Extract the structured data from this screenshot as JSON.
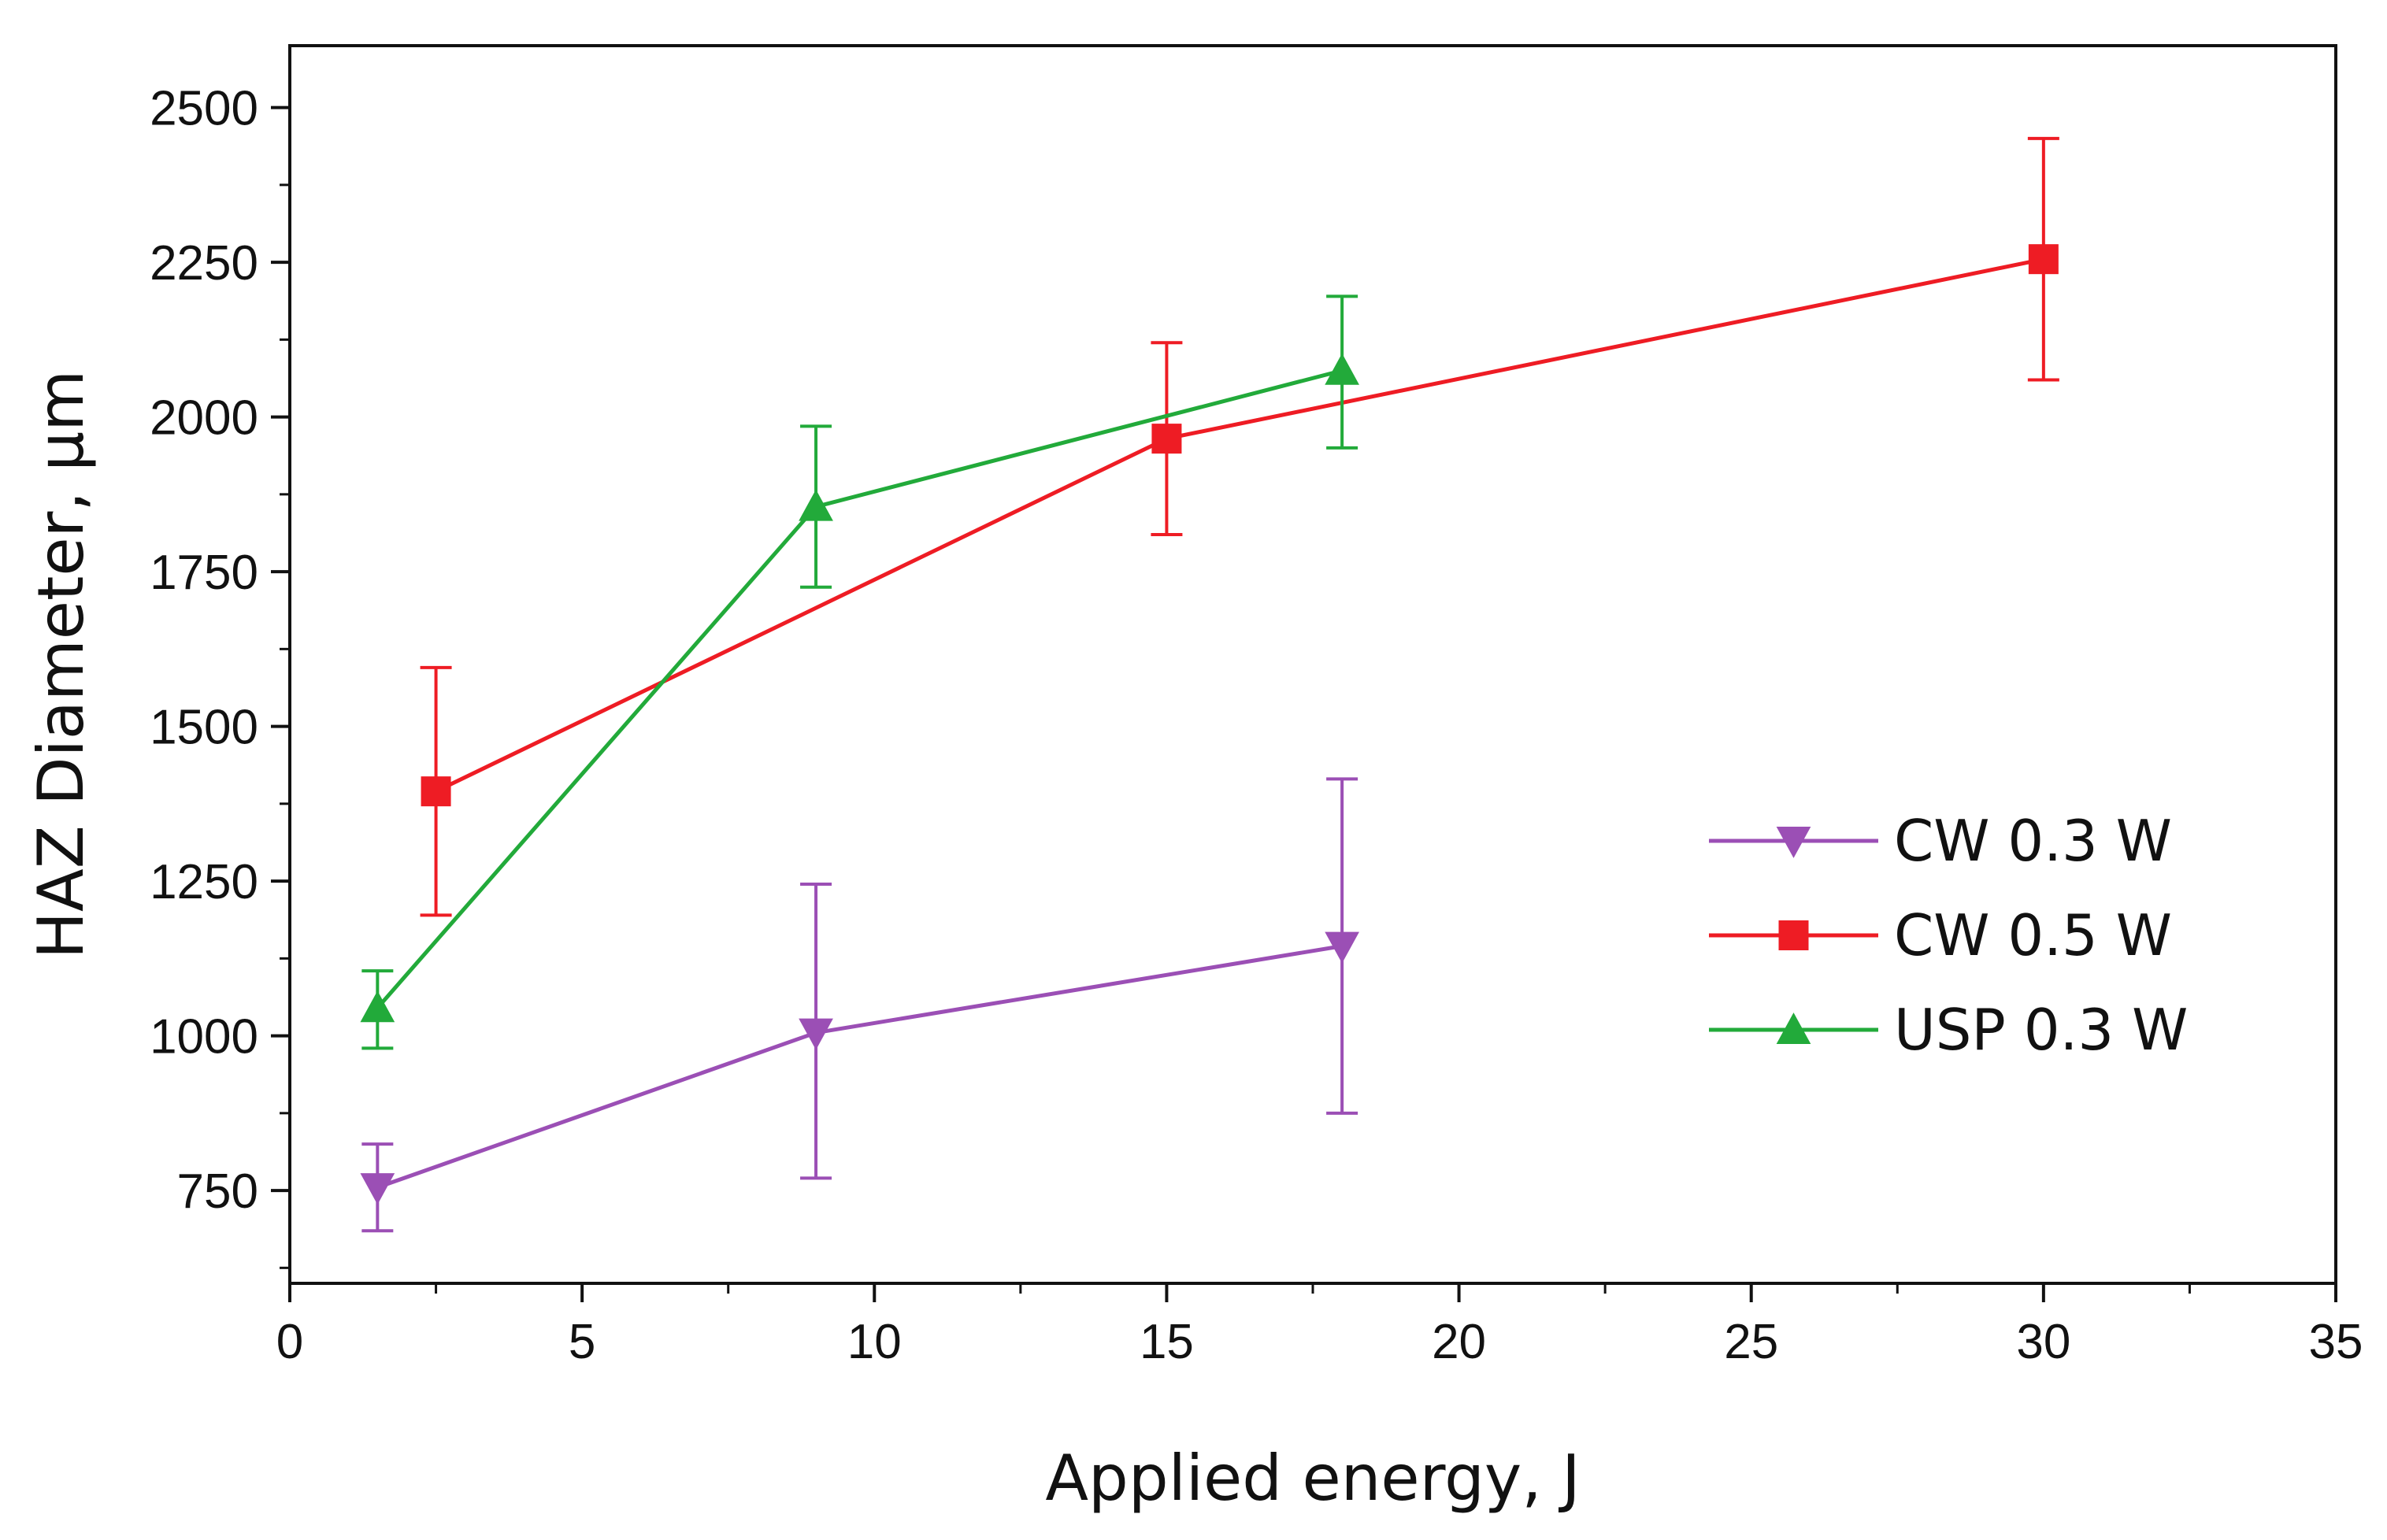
{
  "chart_data": {
    "type": "line",
    "title": "",
    "xlabel": "Applied energy, J",
    "ylabel": "HAZ Diameter, µm",
    "xlim": [
      0,
      35
    ],
    "ylim": [
      600,
      2600
    ],
    "xticks": [
      0,
      5,
      10,
      15,
      20,
      25,
      30,
      35
    ],
    "yticks": [
      750,
      1000,
      1250,
      1500,
      1750,
      2000,
      2250,
      2500
    ],
    "xtick_labels": [
      "0",
      "5",
      "10",
      "15",
      "20",
      "25",
      "30",
      "35"
    ],
    "ytick_labels": [
      "750",
      "1000",
      "1250",
      "1500",
      "1750",
      "2000",
      "2250",
      "2500"
    ],
    "legend_position": "center-right",
    "series": [
      {
        "name": "CW 0.3 W",
        "color": "#9b4fb5",
        "marker": "triangle-down",
        "x": [
          1.5,
          9,
          18
        ],
        "y": [
          755,
          1005,
          1145
        ],
        "err_low": [
          685,
          770,
          875
        ],
        "err_high": [
          825,
          1245,
          1415
        ]
      },
      {
        "name": "CW 0.5 W",
        "color": "#ee1c24",
        "marker": "square",
        "x": [
          2.5,
          15,
          30
        ],
        "y": [
          1395,
          1965,
          2255
        ],
        "err_low": [
          1195,
          1810,
          2060
        ],
        "err_high": [
          1595,
          2120,
          2450
        ]
      },
      {
        "name": "USP 0.3 W",
        "color": "#22aa3a",
        "marker": "triangle-up",
        "x": [
          1.5,
          9,
          18
        ],
        "y": [
          1045,
          1855,
          2075
        ],
        "err_low": [
          980,
          1725,
          1950
        ],
        "err_high": [
          1105,
          1985,
          2195
        ]
      }
    ]
  }
}
